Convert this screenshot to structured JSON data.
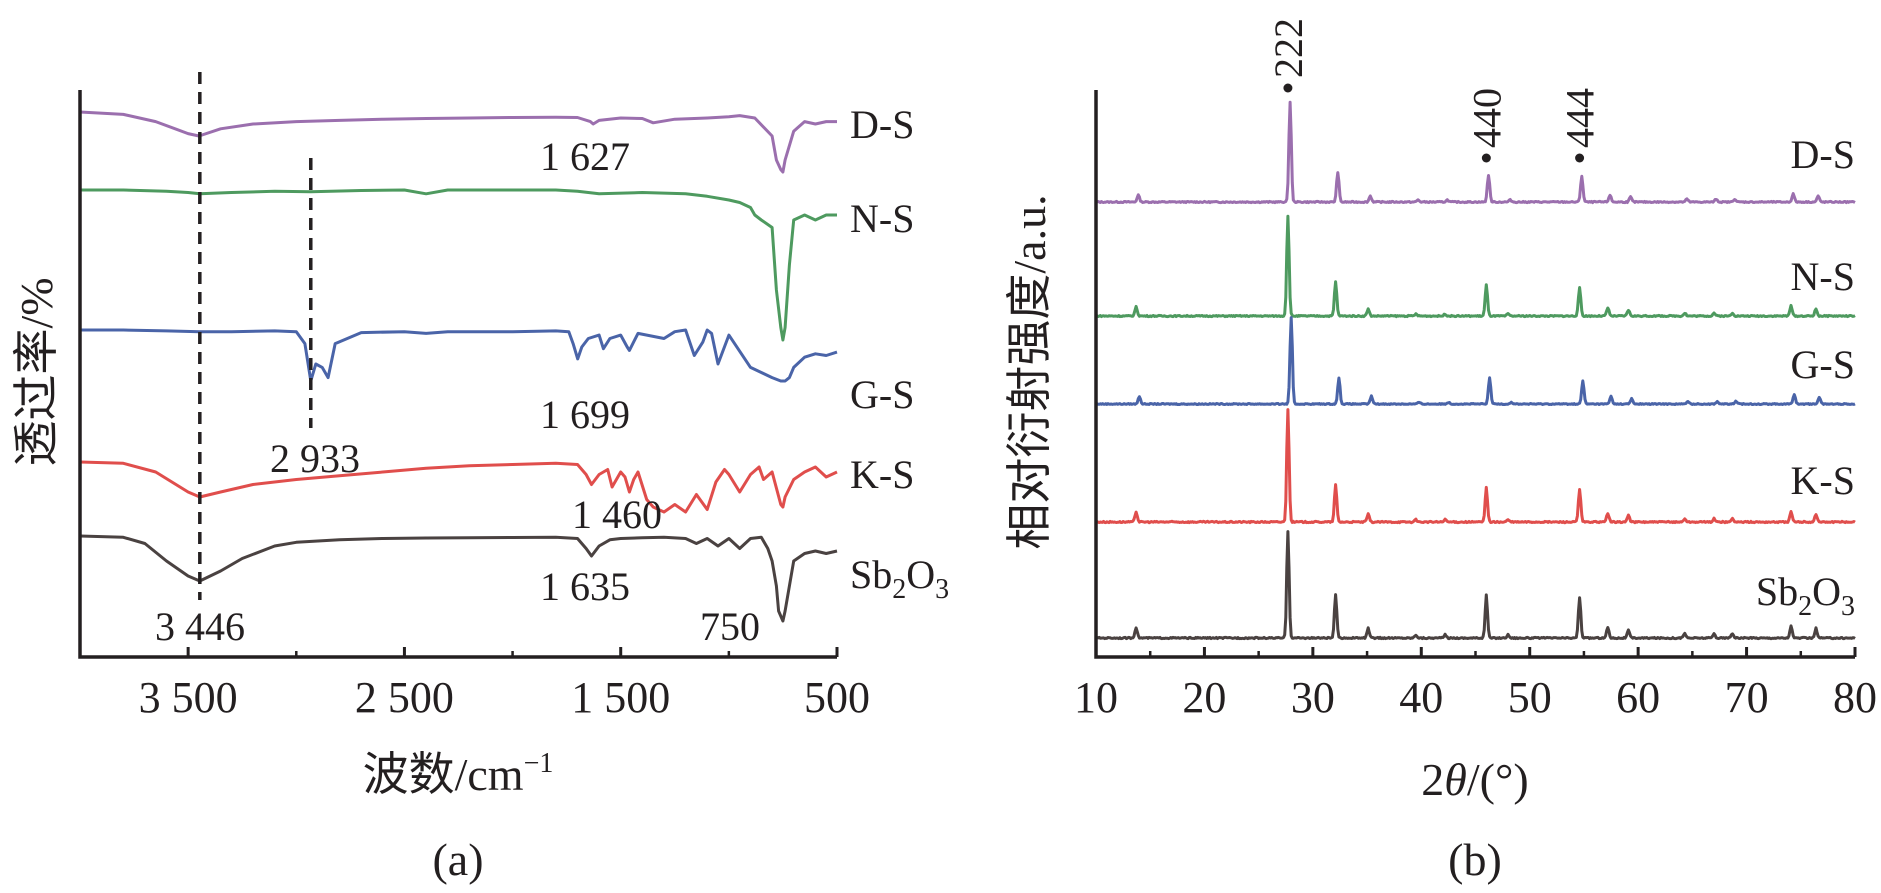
{
  "chart_data": [
    {
      "type": "line",
      "panel_label": "(a)",
      "xlabel": "波数/cm",
      "xlabel_superscript": "−1",
      "ylabel": "透过率/%",
      "xlim": [
        4000,
        500
      ],
      "x_reversed": true,
      "x_ticks": [
        3500,
        2500,
        1500,
        500
      ],
      "x_tick_labels": [
        "3 500",
        "2 500",
        "1 500",
        "500"
      ],
      "grid": false,
      "series": [
        {
          "name": "D-S",
          "color": "#9b6fae",
          "x": [
            4000,
            3800,
            3650,
            3500,
            3450,
            3350,
            3200,
            3000,
            2800,
            2600,
            2400,
            2200,
            2000,
            1800,
            1700,
            1640,
            1627,
            1600,
            1500,
            1400,
            1350,
            1250,
            1100,
            1000,
            950,
            880,
            800,
            780,
            760,
            750,
            740,
            700,
            650,
            600,
            550,
            500
          ],
          "y": [
            100,
            99,
            96,
            91,
            90,
            93,
            95,
            96,
            96.5,
            97,
            97.3,
            97.5,
            97.7,
            97.8,
            97.7,
            96,
            95,
            96.5,
            97.5,
            97.3,
            95.5,
            97,
            97.5,
            98,
            98.5,
            97.5,
            90,
            80,
            76,
            75,
            80,
            92,
            96,
            95,
            96,
            96
          ]
        },
        {
          "name": "N-S",
          "color": "#4e9a5f",
          "x": [
            4000,
            3800,
            3600,
            3500,
            3446,
            3300,
            3100,
            2933,
            2700,
            2500,
            2400,
            2300,
            2000,
            1800,
            1700,
            1600,
            1400,
            1200,
            1100,
            1000,
            950,
            900,
            880,
            850,
            800,
            780,
            760,
            750,
            740,
            720,
            700,
            650,
            600,
            550,
            500
          ],
          "y": [
            100,
            100,
            99.5,
            99,
            98.5,
            99,
            99.5,
            99.3,
            99.8,
            100,
            98.5,
            100,
            100,
            100,
            99.5,
            98.5,
            99,
            98.5,
            97.5,
            96,
            95,
            93,
            90,
            88,
            85,
            60,
            45,
            40,
            45,
            70,
            88,
            90,
            88,
            90,
            90
          ]
        },
        {
          "name": "G-S",
          "color": "#4a64a8",
          "x": [
            4000,
            3800,
            3600,
            3446,
            3300,
            3100,
            3000,
            2960,
            2933,
            2910,
            2880,
            2853,
            2820,
            2700,
            2500,
            2400,
            2300,
            2000,
            1800,
            1740,
            1720,
            1699,
            1680,
            1650,
            1600,
            1580,
            1550,
            1500,
            1470,
            1460,
            1420,
            1300,
            1250,
            1200,
            1160,
            1120,
            1100,
            1080,
            1050,
            1000,
            900,
            850,
            800,
            760,
            740,
            720,
            700,
            650,
            600,
            550,
            500
          ],
          "y": [
            100,
            100,
            99.5,
            99,
            99,
            99.5,
            99,
            92,
            70,
            80,
            78,
            72,
            92,
            98.5,
            99,
            98,
            99,
            99,
            99.5,
            99,
            92,
            83,
            90,
            95,
            97,
            89,
            95,
            97,
            90,
            88,
            98,
            95,
            99,
            100,
            85,
            93,
            100,
            98,
            80,
            97,
            78,
            75,
            72,
            70,
            70,
            72,
            78,
            84,
            86,
            85,
            87
          ]
        },
        {
          "name": "K-S",
          "color": "#e04e4c",
          "x": [
            4000,
            3800,
            3650,
            3500,
            3446,
            3350,
            3200,
            3000,
            2800,
            2600,
            2400,
            2200,
            2000,
            1800,
            1700,
            1660,
            1635,
            1600,
            1560,
            1540,
            1500,
            1480,
            1460,
            1440,
            1420,
            1380,
            1350,
            1300,
            1250,
            1200,
            1150,
            1100,
            1060,
            1020,
            1000,
            950,
            900,
            860,
            840,
            800,
            760,
            750,
            740,
            700,
            650,
            600,
            550,
            500
          ],
          "y": [
            100,
            99.5,
            96,
            88,
            86,
            88,
            91,
            93,
            94.5,
            96,
            97.5,
            98.5,
            99,
            99.5,
            99,
            95,
            91,
            95,
            97,
            90,
            96,
            94,
            88,
            93,
            96,
            85,
            82,
            80,
            83,
            80,
            87,
            81,
            92,
            97,
            95,
            88,
            95,
            98,
            93,
            96,
            83,
            82,
            86,
            93,
            96,
            98,
            94,
            96
          ]
        },
        {
          "name": "Sb₂O₃",
          "name_main": "Sb",
          "name_sub1": "2",
          "name_mid": "O",
          "name_sub2": "3",
          "color": "#4a4241",
          "x": [
            4000,
            3800,
            3700,
            3600,
            3500,
            3446,
            3350,
            3250,
            3100,
            3000,
            2800,
            2600,
            2400,
            2200,
            2000,
            1800,
            1700,
            1660,
            1635,
            1600,
            1550,
            1500,
            1400,
            1300,
            1200,
            1150,
            1100,
            1050,
            1000,
            950,
            900,
            850,
            820,
            800,
            780,
            770,
            750,
            740,
            720,
            700,
            650,
            600,
            550,
            500
          ],
          "y": [
            100,
            99.5,
            97,
            90,
            84,
            82,
            86,
            91,
            96,
            97.5,
            98.5,
            99,
            99.2,
            99.3,
            99.4,
            99.5,
            99,
            95,
            92,
            96,
            98.5,
            99,
            99.3,
            99.5,
            99,
            97,
            99,
            96,
            99,
            95,
            99,
            99.5,
            95,
            90,
            80,
            70,
            66,
            70,
            80,
            90,
            93,
            94,
            93,
            94
          ]
        }
      ],
      "vertical_markers": [
        3446,
        2933
      ],
      "annotations": [
        "1 627",
        "2 933",
        "1 699",
        "1 460",
        "3 446",
        "1 635",
        "750"
      ]
    },
    {
      "type": "line",
      "panel_label": "(b)",
      "xlabel_prefix": "2",
      "xlabel_theta": "θ",
      "xlabel_suffix": "/(°)",
      "ylabel": "相对衍射强度/a.u.",
      "xlim": [
        10,
        80
      ],
      "x_ticks": [
        10,
        20,
        30,
        40,
        50,
        60,
        70,
        80
      ],
      "x_tick_labels": [
        "10",
        "20",
        "30",
        "40",
        "50",
        "60",
        "70",
        "80"
      ],
      "grid": false,
      "peaks_2theta": [
        13.7,
        27.7,
        32.1,
        35.1,
        39.5,
        42.2,
        46.0,
        48.0,
        54.6,
        57.2,
        59.1,
        64.3,
        67.0,
        68.7,
        74.1,
        76.4
      ],
      "series": [
        {
          "name": "D-S",
          "color": "#9b6fae",
          "shift": 0.2,
          "intensities": [
            7,
            100,
            30,
            6,
            2,
            2,
            27,
            2,
            26,
            7,
            5,
            3,
            3,
            3,
            8,
            6
          ]
        },
        {
          "name": "N-S",
          "color": "#4e9a5f",
          "shift": 0.0,
          "intensities": [
            9,
            100,
            34,
            7,
            2,
            2,
            31,
            2,
            28,
            8,
            6,
            3,
            3,
            3,
            10,
            7
          ]
        },
        {
          "name": "G-S",
          "color": "#4a64a8",
          "shift": 0.3,
          "intensities": [
            9,
            100,
            30,
            9,
            2,
            2,
            30,
            2,
            27,
            9,
            6,
            3,
            3,
            3,
            11,
            8
          ]
        },
        {
          "name": "K-S",
          "color": "#e04e4c",
          "shift": 0.0,
          "intensities": [
            9,
            100,
            33,
            7,
            2,
            2,
            31,
            2,
            29,
            8,
            6,
            3,
            3,
            3,
            9,
            7
          ]
        },
        {
          "name": "Sb₂O₃",
          "name_main": "Sb",
          "name_sub1": "2",
          "name_mid": "O",
          "name_sub2": "3",
          "color": "#4a4241",
          "shift": 0.0,
          "intensities": [
            10,
            100,
            40,
            9,
            3,
            3,
            40,
            3,
            38,
            10,
            7,
            4,
            4,
            4,
            11,
            9
          ]
        }
      ],
      "peak_markers": [
        {
          "label": "222",
          "x": 27.7
        },
        {
          "label": "440",
          "x": 46.0
        },
        {
          "label": "444",
          "x": 54.6
        }
      ]
    }
  ]
}
